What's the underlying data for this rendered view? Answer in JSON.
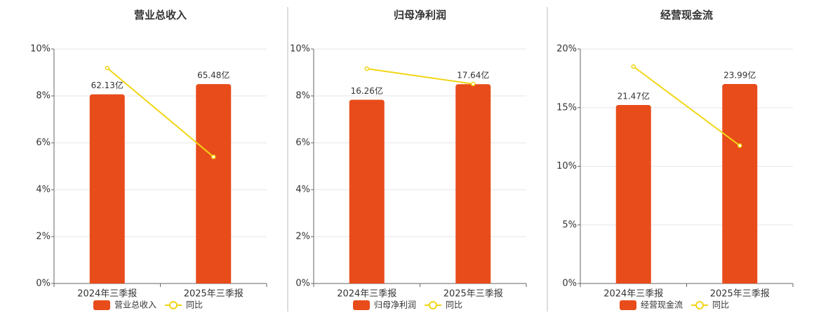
{
  "chart_data": [
    {
      "type": "bar",
      "title": "营业总收入",
      "categories": [
        "2024年三季报",
        "2025年三季报"
      ],
      "series": [
        {
          "name": "营业总收入",
          "color": "#e84c1a",
          "axis": "y2",
          "values": [
            62.13,
            65.48
          ],
          "value_labels": [
            "62.13亿",
            "65.48亿"
          ]
        },
        {
          "name": "同比",
          "color": "#f2d516",
          "type": "line",
          "values": [
            9.19,
            5.4
          ]
        }
      ],
      "ylim": [
        0,
        10
      ],
      "yticks": [
        {
          "value": 0,
          "label": "0%"
        },
        {
          "value": 2,
          "label": "2%"
        },
        {
          "value": 4,
          "label": "4%"
        },
        {
          "value": 6,
          "label": "6%"
        },
        {
          "value": 8,
          "label": "8%"
        },
        {
          "value": 10,
          "label": "10%"
        }
      ],
      "y2lim": [
        0,
        77
      ],
      "grid": true,
      "legend": "bottom"
    },
    {
      "type": "bar",
      "title": "归母净利润",
      "categories": [
        "2024年三季报",
        "2025年三季报"
      ],
      "series": [
        {
          "name": "归母净利润",
          "color": "#e84c1a",
          "axis": "y2",
          "values": [
            16.26,
            17.64
          ],
          "value_labels": [
            "16.26亿",
            "17.64亿"
          ]
        },
        {
          "name": "同比",
          "color": "#f2d516",
          "type": "line",
          "values": [
            9.16,
            8.51
          ]
        }
      ],
      "ylim": [
        0,
        10
      ],
      "yticks": [
        {
          "value": 0,
          "label": "0%"
        },
        {
          "value": 2,
          "label": "2%"
        },
        {
          "value": 4,
          "label": "4%"
        },
        {
          "value": 6,
          "label": "6%"
        },
        {
          "value": 8,
          "label": "8%"
        },
        {
          "value": 10,
          "label": "10%"
        }
      ],
      "y2lim": [
        0,
        20.75
      ],
      "grid": true,
      "legend": "bottom"
    },
    {
      "type": "bar",
      "title": "经营现金流",
      "categories": [
        "2024年三季报",
        "2025年三季报"
      ],
      "series": [
        {
          "name": "经营现金流",
          "color": "#e84c1a",
          "axis": "y2",
          "values": [
            21.47,
            23.99
          ],
          "value_labels": [
            "21.47亿",
            "23.99亿"
          ]
        },
        {
          "name": "同比",
          "color": "#f2d516",
          "type": "line",
          "values": [
            18.5,
            11.76
          ]
        }
      ],
      "ylim": [
        0,
        20
      ],
      "yticks": [
        {
          "value": 0,
          "label": "0%"
        },
        {
          "value": 5,
          "label": "5%"
        },
        {
          "value": 10,
          "label": "10%"
        },
        {
          "value": 15,
          "label": "15%"
        },
        {
          "value": 20,
          "label": "20%"
        }
      ],
      "y2lim": [
        0,
        28.2
      ],
      "grid": true,
      "legend": "bottom"
    }
  ]
}
